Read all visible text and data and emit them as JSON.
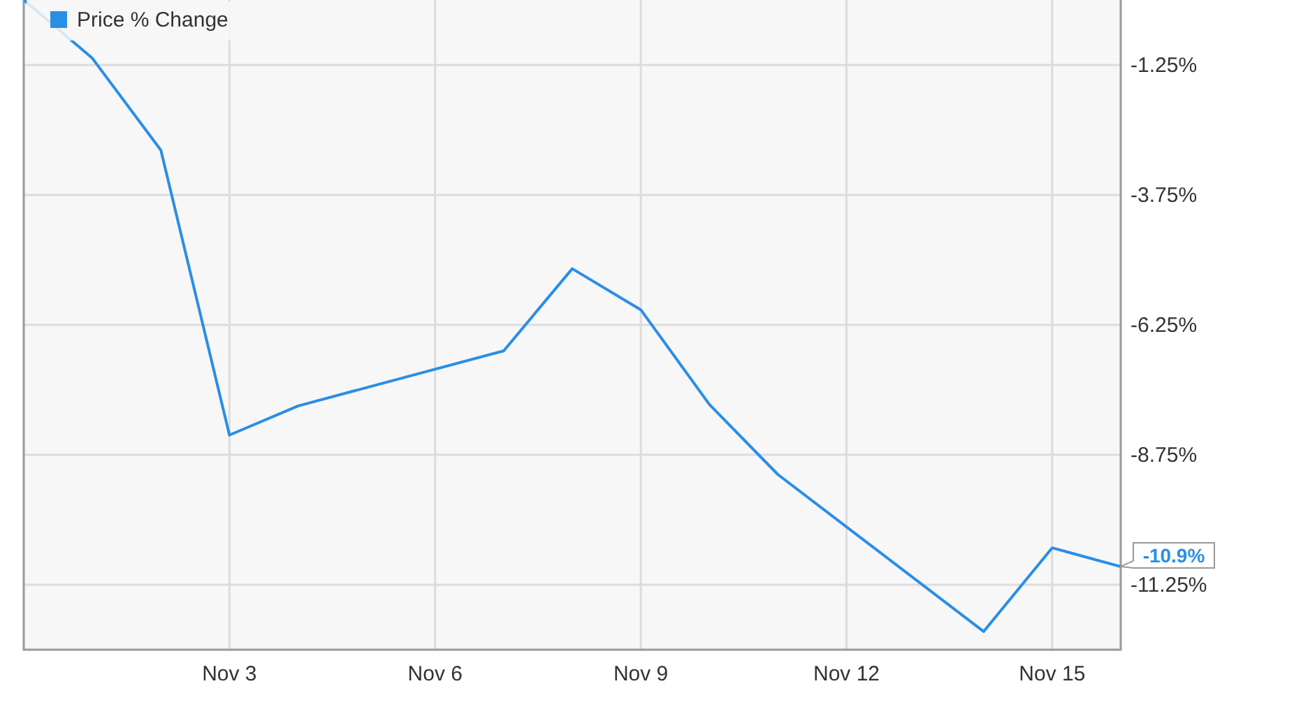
{
  "chart_data": {
    "type": "line",
    "x": [
      "--10-31",
      "--11-01",
      "--11-02",
      "--11-03",
      "--11-04",
      "--11-07",
      "--11-08",
      "--11-09",
      "--11-10",
      "--11-11",
      "--11-14",
      "--11-15",
      "--11-16"
    ],
    "series": [
      {
        "name": "Price % Change",
        "color": "#2a8ee6",
        "values": [
          0,
          -1.12,
          -2.89,
          -8.37,
          -7.81,
          -6.75,
          -5.17,
          -5.96,
          -7.78,
          -9.13,
          -12.15,
          -10.54,
          -10.9
        ]
      }
    ],
    "xlim": [
      "--10-31",
      "--11-16"
    ],
    "xticks": [
      {
        "value": "--11-03",
        "label": "Nov 3"
      },
      {
        "value": "--11-06",
        "label": "Nov 6"
      },
      {
        "value": "--11-09",
        "label": "Nov 9"
      },
      {
        "value": "--11-12",
        "label": "Nov 12"
      },
      {
        "value": "--11-15",
        "label": "Nov 15"
      }
    ],
    "ylim": [
      -12.5,
      0
    ],
    "yticks": [
      {
        "value": -1.25,
        "label": "-1.25%"
      },
      {
        "value": -3.75,
        "label": "-3.75%"
      },
      {
        "value": -6.25,
        "label": "-6.25%"
      },
      {
        "value": -8.75,
        "label": "-8.75%"
      },
      {
        "value": -11.25,
        "label": "-11.25%"
      }
    ],
    "annotations": [
      {
        "text": "-10.9%",
        "x": "--11-16",
        "y": -10.9
      }
    ],
    "grid": true,
    "legend": "top left",
    "marker": "none",
    "line_style": "solid"
  }
}
